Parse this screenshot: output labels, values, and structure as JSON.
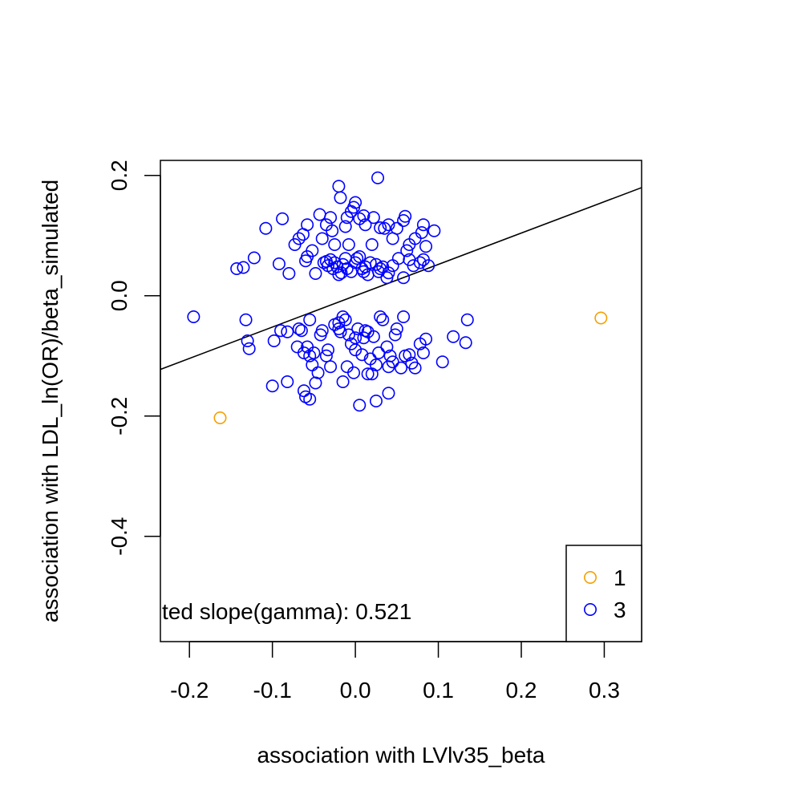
{
  "chart_data": {
    "type": "scatter",
    "title": "",
    "xlabel": "association with LVlv35_beta",
    "ylabel": "association with LDL_ln(OR)/beta_simulated",
    "xlim": [
      -0.235,
      0.345
    ],
    "ylim": [
      -0.575,
      0.225
    ],
    "xticks": [
      -0.2,
      -0.1,
      0.0,
      0.1,
      0.2,
      0.3
    ],
    "xtick_labels": [
      "-0.2",
      "-0.1",
      "0.0",
      "0.1",
      "0.2",
      "0.3"
    ],
    "yticks": [
      0.2,
      0.0,
      -0.2,
      -0.4
    ],
    "ytick_labels": [
      "0.2",
      "0.0",
      "-0.2",
      "-0.4"
    ],
    "grid": false,
    "legend_position": "bottom-right",
    "annotation": "ted slope(gamma): 0.521",
    "fit_line": {
      "slope": 0.521,
      "intercept": 0.0
    },
    "series": [
      {
        "name": "1",
        "color": "#f5a000",
        "marker": "open-circle",
        "points": [
          [
            -0.163,
            -0.203
          ],
          [
            0.296,
            -0.037
          ]
        ]
      },
      {
        "name": "3",
        "color": "#0000ff",
        "marker": "open-circle",
        "points": [
          [
            -0.195,
            -0.035
          ],
          [
            -0.143,
            0.045
          ],
          [
            -0.135,
            0.047
          ],
          [
            -0.122,
            0.063
          ],
          [
            -0.108,
            0.112
          ],
          [
            -0.088,
            0.128
          ],
          [
            -0.092,
            0.053
          ],
          [
            -0.08,
            0.037
          ],
          [
            -0.073,
            0.085
          ],
          [
            -0.068,
            0.095
          ],
          [
            -0.063,
            0.102
          ],
          [
            -0.058,
            0.118
          ],
          [
            -0.058,
            0.065
          ],
          [
            -0.06,
            0.058
          ],
          [
            -0.052,
            0.075
          ],
          [
            -0.048,
            0.037
          ],
          [
            -0.043,
            0.135
          ],
          [
            -0.04,
            0.095
          ],
          [
            -0.035,
            0.118
          ],
          [
            -0.03,
            0.13
          ],
          [
            -0.028,
            0.108
          ],
          [
            -0.025,
            0.085
          ],
          [
            -0.02,
            0.182
          ],
          [
            -0.018,
            0.163
          ],
          [
            -0.012,
            0.115
          ],
          [
            -0.01,
            0.13
          ],
          [
            -0.005,
            0.14
          ],
          [
            -0.002,
            0.147
          ],
          [
            0.0,
            0.155
          ],
          [
            0.005,
            0.128
          ],
          [
            0.01,
            0.133
          ],
          [
            0.012,
            0.118
          ],
          [
            0.022,
            0.13
          ],
          [
            0.027,
            0.196
          ],
          [
            0.03,
            0.113
          ],
          [
            0.035,
            0.112
          ],
          [
            0.04,
            0.118
          ],
          [
            0.045,
            0.095
          ],
          [
            0.05,
            0.112
          ],
          [
            0.058,
            0.125
          ],
          [
            0.06,
            0.132
          ],
          [
            0.065,
            0.085
          ],
          [
            0.072,
            0.095
          ],
          [
            0.08,
            0.105
          ],
          [
            0.082,
            0.118
          ],
          [
            0.085,
            0.082
          ],
          [
            0.095,
            0.108
          ],
          [
            -0.038,
            0.055
          ],
          [
            -0.035,
            0.057
          ],
          [
            -0.033,
            0.05
          ],
          [
            -0.03,
            0.06
          ],
          [
            -0.027,
            0.045
          ],
          [
            -0.025,
            0.055
          ],
          [
            -0.022,
            0.048
          ],
          [
            -0.02,
            0.035
          ],
          [
            -0.017,
            0.038
          ],
          [
            -0.015,
            0.052
          ],
          [
            -0.012,
            0.062
          ],
          [
            -0.01,
            0.045
          ],
          [
            -0.008,
            0.085
          ],
          [
            -0.005,
            0.04
          ],
          [
            0.0,
            0.055
          ],
          [
            0.002,
            0.062
          ],
          [
            0.005,
            0.065
          ],
          [
            0.008,
            0.045
          ],
          [
            0.01,
            0.04
          ],
          [
            0.012,
            0.048
          ],
          [
            0.015,
            0.035
          ],
          [
            0.018,
            0.055
          ],
          [
            0.02,
            0.085
          ],
          [
            0.025,
            0.052
          ],
          [
            0.028,
            0.04
          ],
          [
            0.03,
            0.045
          ],
          [
            0.033,
            0.048
          ],
          [
            0.038,
            0.03
          ],
          [
            0.04,
            0.038
          ],
          [
            0.045,
            0.05
          ],
          [
            0.052,
            0.062
          ],
          [
            0.058,
            0.03
          ],
          [
            0.062,
            0.075
          ],
          [
            0.065,
            0.06
          ],
          [
            0.07,
            0.05
          ],
          [
            0.078,
            0.055
          ],
          [
            0.082,
            0.06
          ],
          [
            0.088,
            0.05
          ],
          [
            -0.132,
            -0.04
          ],
          [
            -0.13,
            -0.075
          ],
          [
            -0.128,
            -0.088
          ],
          [
            -0.098,
            -0.075
          ],
          [
            -0.09,
            -0.058
          ],
          [
            -0.082,
            -0.06
          ],
          [
            -0.07,
            -0.085
          ],
          [
            -0.068,
            -0.055
          ],
          [
            -0.065,
            -0.058
          ],
          [
            -0.062,
            -0.095
          ],
          [
            -0.058,
            -0.085
          ],
          [
            -0.055,
            -0.04
          ],
          [
            -0.055,
            -0.1
          ],
          [
            -0.052,
            -0.115
          ],
          [
            -0.05,
            -0.095
          ],
          [
            -0.048,
            -0.145
          ],
          [
            -0.045,
            -0.128
          ],
          [
            -0.042,
            -0.065
          ],
          [
            -0.04,
            -0.058
          ],
          [
            -0.035,
            -0.1
          ],
          [
            -0.033,
            -0.09
          ],
          [
            -0.03,
            -0.118
          ],
          [
            -0.025,
            -0.048
          ],
          [
            -0.02,
            -0.045
          ],
          [
            -0.018,
            -0.06
          ],
          [
            -0.015,
            -0.035
          ],
          [
            -0.012,
            -0.04
          ],
          [
            -0.01,
            -0.118
          ],
          [
            -0.008,
            -0.065
          ],
          [
            -0.005,
            -0.08
          ],
          [
            -0.002,
            -0.128
          ],
          [
            0.0,
            -0.09
          ],
          [
            0.003,
            -0.055
          ],
          [
            0.008,
            -0.098
          ],
          [
            0.01,
            -0.07
          ],
          [
            0.012,
            -0.058
          ],
          [
            0.015,
            -0.06
          ],
          [
            0.018,
            -0.105
          ],
          [
            0.02,
            -0.13
          ],
          [
            0.022,
            -0.068
          ],
          [
            0.025,
            -0.115
          ],
          [
            0.028,
            -0.095
          ],
          [
            0.03,
            -0.035
          ],
          [
            0.033,
            -0.04
          ],
          [
            0.038,
            -0.085
          ],
          [
            0.04,
            -0.118
          ],
          [
            0.042,
            -0.1
          ],
          [
            0.045,
            -0.11
          ],
          [
            0.048,
            -0.065
          ],
          [
            0.05,
            -0.055
          ],
          [
            0.055,
            -0.12
          ],
          [
            0.058,
            -0.035
          ],
          [
            0.06,
            -0.1
          ],
          [
            0.065,
            -0.098
          ],
          [
            0.068,
            -0.112
          ],
          [
            0.072,
            -0.12
          ],
          [
            0.078,
            -0.08
          ],
          [
            0.082,
            -0.095
          ],
          [
            0.085,
            -0.072
          ],
          [
            0.105,
            -0.11
          ],
          [
            0.118,
            -0.068
          ],
          [
            0.133,
            -0.078
          ],
          [
            0.135,
            -0.04
          ],
          [
            -0.1,
            -0.15
          ],
          [
            -0.082,
            -0.143
          ],
          [
            -0.062,
            -0.158
          ],
          [
            -0.06,
            -0.168
          ],
          [
            -0.055,
            -0.172
          ],
          [
            -0.015,
            -0.143
          ],
          [
            0.005,
            -0.182
          ],
          [
            0.025,
            -0.175
          ],
          [
            0.04,
            -0.162
          ],
          [
            0.015,
            -0.13
          ],
          [
            -0.02,
            -0.055
          ],
          [
            0.0,
            -0.07
          ]
        ]
      }
    ]
  }
}
